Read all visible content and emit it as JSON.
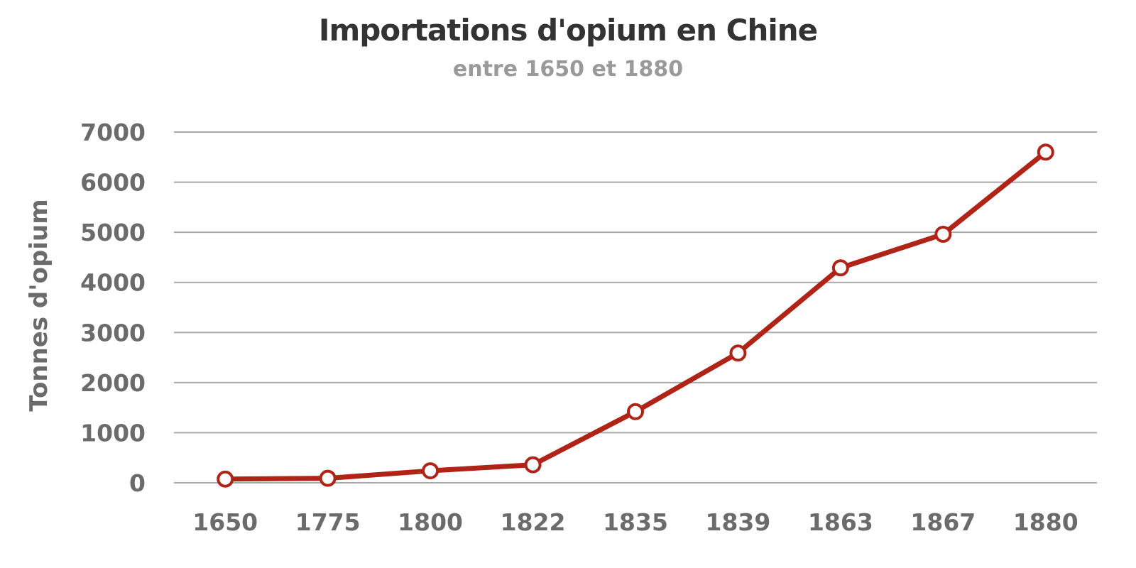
{
  "chart_data": {
    "type": "line",
    "title": "Importations d'opium en Chine",
    "subtitle": "entre 1650 et 1880",
    "xlabel": "",
    "ylabel": "Tonnes d'opium",
    "categories": [
      "1650",
      "1775",
      "1800",
      "1822",
      "1835",
      "1839",
      "1863",
      "1867",
      "1880"
    ],
    "series": [
      {
        "values": [
          75,
          90,
          240,
          360,
          1420,
          2590,
          4290,
          4960,
          6600
        ]
      }
    ],
    "ylim": [
      0,
      7000
    ],
    "yticks": [
      0,
      1000,
      2000,
      3000,
      4000,
      5000,
      6000,
      7000
    ],
    "grid": true,
    "legend": "none",
    "colors": {
      "line": "#b02418",
      "marker_fill": "#ffffff",
      "grid": "#a8a8a8"
    }
  }
}
